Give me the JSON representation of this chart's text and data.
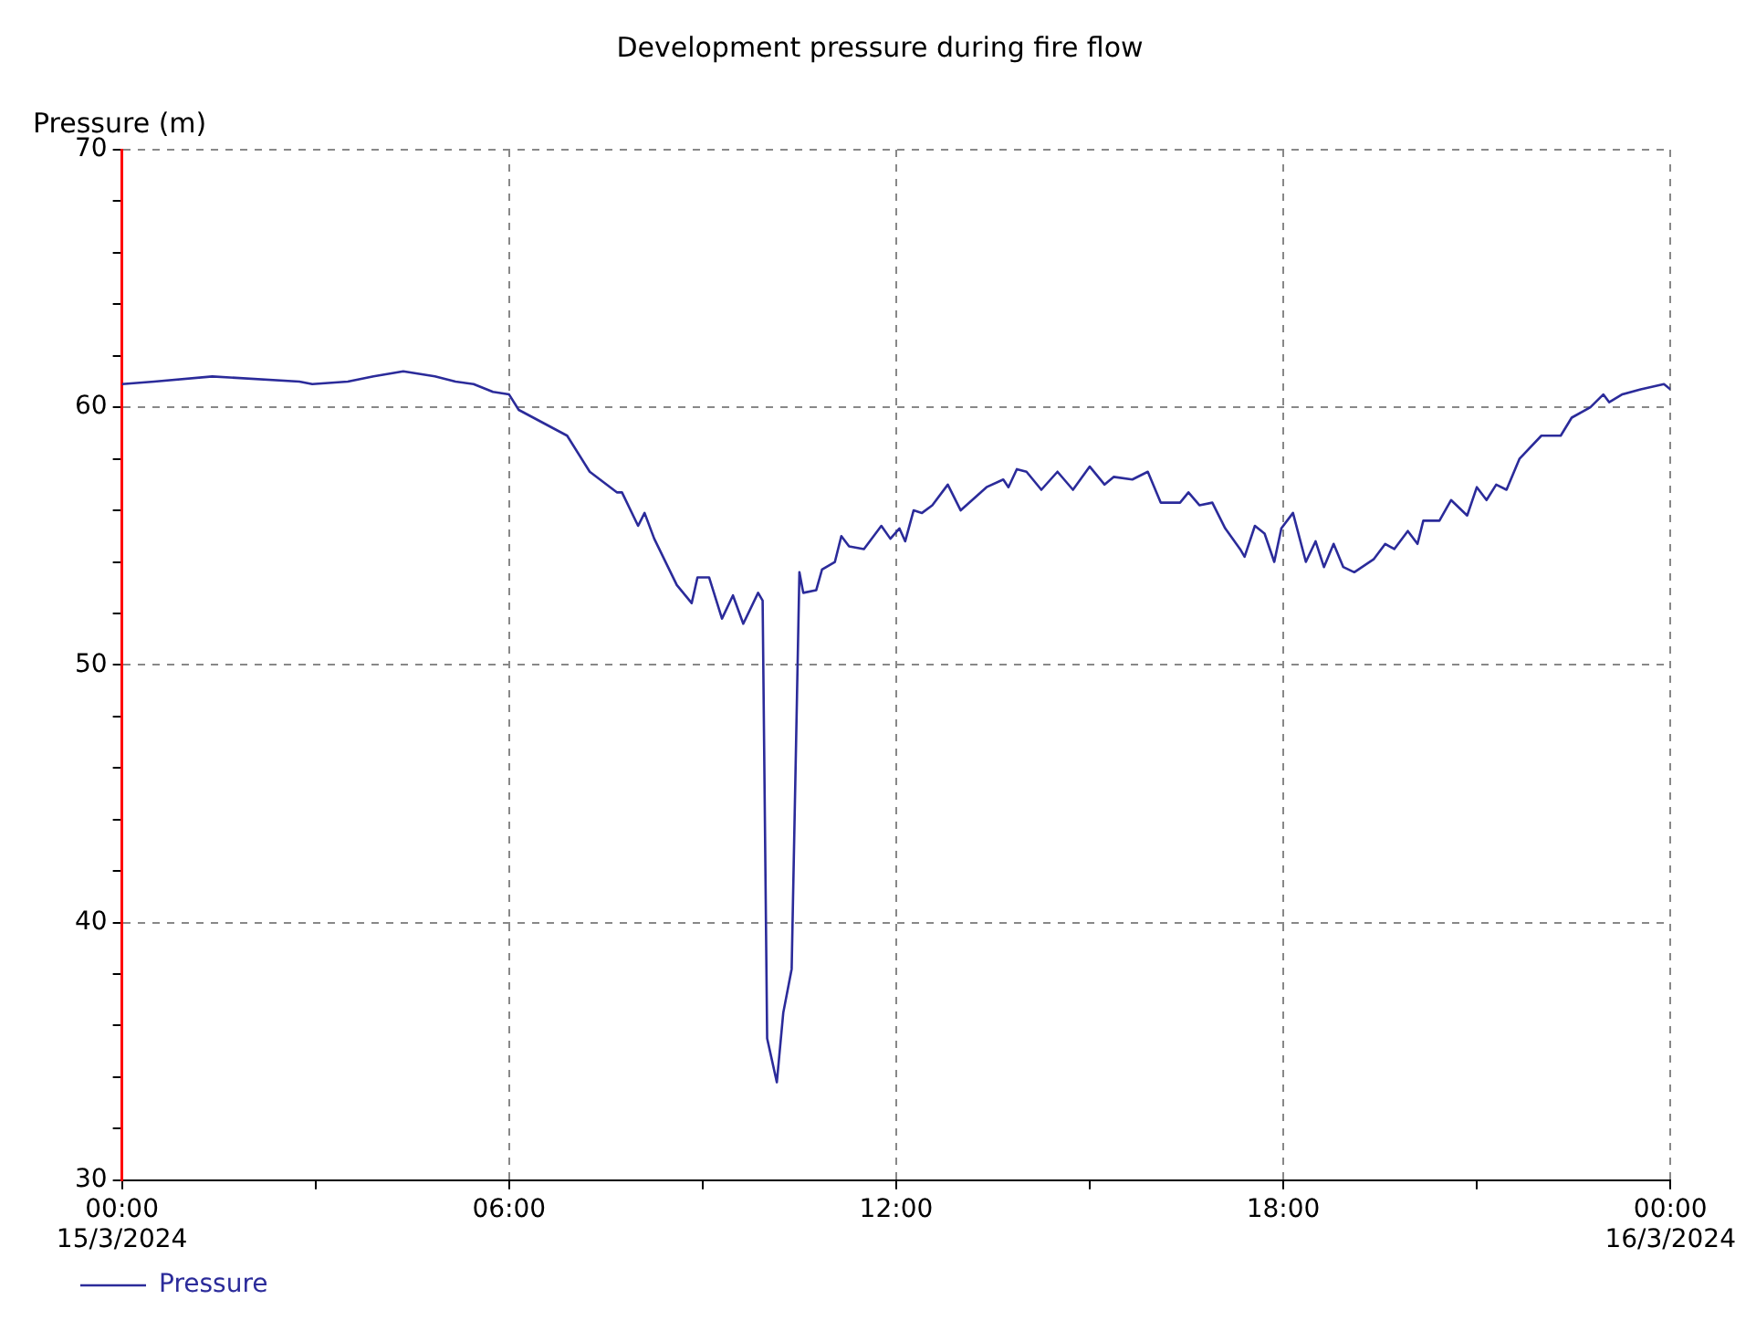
{
  "chart_data": {
    "type": "line",
    "title": "Development pressure during fire flow",
    "ylabel": "Pressure (m)",
    "xlim": [
      0,
      24
    ],
    "xticks": [
      {
        "value": 0,
        "label": "00:00\n15/3/2024"
      },
      {
        "value": 3,
        "label": null
      },
      {
        "value": 6,
        "label": "06:00"
      },
      {
        "value": 9,
        "label": null
      },
      {
        "value": 12,
        "label": "12:00"
      },
      {
        "value": 15,
        "label": null
      },
      {
        "value": 18,
        "label": "18:00"
      },
      {
        "value": 21,
        "label": null
      },
      {
        "value": 24,
        "label": "00:00\n16/3/2024"
      }
    ],
    "ylim": [
      30,
      70
    ],
    "yticks": [
      30,
      {
        "value": 32,
        "label": null
      },
      {
        "value": 34,
        "label": null
      },
      {
        "value": 36,
        "label": null
      },
      {
        "value": 38,
        "label": null
      },
      40,
      {
        "value": 42,
        "label": null
      },
      {
        "value": 44,
        "label": null
      },
      {
        "value": 46,
        "label": null
      },
      {
        "value": 48,
        "label": null
      },
      50,
      {
        "value": 52,
        "label": null
      },
      {
        "value": 54,
        "label": null
      },
      {
        "value": 56,
        "label": null
      },
      {
        "value": 58,
        "label": null
      },
      60,
      {
        "value": 62,
        "label": null
      },
      {
        "value": 64,
        "label": null
      },
      {
        "value": 66,
        "label": null
      },
      {
        "value": 68,
        "label": null
      },
      70
    ],
    "grid": true,
    "legend": "bottom left",
    "marker": "none",
    "line_style": "solid",
    "series": [
      {
        "name": "Pressure",
        "color": "#2b2b9a",
        "x": [
          0,
          0.5,
          1.4,
          2.75,
          2.95,
          3.5,
          3.9,
          4.36,
          4.85,
          5.17,
          5.45,
          5.75,
          6.0,
          6.15,
          6.9,
          7.25,
          7.67,
          7.75,
          8.0,
          8.1,
          8.25,
          8.6,
          8.83,
          8.92,
          9.1,
          9.3,
          9.47,
          9.63,
          9.86,
          9.93,
          10.0,
          10.15,
          10.25,
          10.38,
          10.5,
          10.56,
          10.76,
          10.85,
          11.05,
          11.15,
          11.27,
          11.5,
          11.77,
          11.91,
          12.05,
          12.14,
          12.27,
          12.4,
          12.56,
          12.8,
          13.0,
          13.4,
          13.66,
          13.74,
          13.87,
          14.02,
          14.25,
          14.5,
          14.74,
          15.0,
          15.23,
          15.37,
          15.66,
          15.9,
          16.1,
          16.4,
          16.53,
          16.7,
          16.9,
          17.1,
          17.33,
          17.4,
          17.56,
          17.71,
          17.86,
          17.97,
          18.15,
          18.35,
          18.5,
          18.63,
          18.78,
          18.93,
          19.1,
          19.4,
          19.58,
          19.72,
          19.93,
          20.08,
          20.17,
          20.42,
          20.6,
          20.85,
          21.0,
          21.15,
          21.3,
          21.46,
          21.66,
          22.0,
          22.3,
          22.47,
          22.76,
          22.96,
          23.05,
          23.25,
          23.54,
          23.9,
          24
        ],
        "values": [
          60.9,
          61.0,
          61.2,
          61.0,
          60.9,
          61.0,
          61.2,
          61.4,
          61.2,
          61.0,
          60.9,
          60.6,
          60.5,
          59.9,
          58.9,
          57.5,
          56.7,
          56.7,
          55.4,
          55.9,
          54.9,
          53.1,
          52.4,
          53.4,
          53.4,
          51.8,
          52.7,
          51.6,
          52.8,
          52.5,
          35.5,
          33.8,
          36.5,
          38.2,
          53.6,
          52.8,
          52.9,
          53.7,
          54.0,
          55.0,
          54.6,
          54.5,
          55.4,
          54.9,
          55.3,
          54.8,
          56.0,
          55.9,
          56.2,
          57.0,
          56.0,
          56.9,
          57.2,
          56.9,
          57.6,
          57.5,
          56.8,
          57.5,
          56.8,
          57.7,
          57.0,
          57.3,
          57.2,
          57.5,
          56.3,
          56.3,
          56.7,
          56.2,
          56.3,
          55.3,
          54.5,
          54.2,
          55.4,
          55.1,
          54.0,
          55.3,
          55.9,
          54.0,
          54.8,
          53.8,
          54.7,
          53.8,
          53.6,
          54.1,
          54.7,
          54.5,
          55.2,
          54.7,
          55.6,
          55.6,
          56.4,
          55.8,
          56.9,
          56.4,
          57.0,
          56.8,
          58.0,
          58.9,
          58.9,
          59.6,
          60.0,
          60.5,
          60.2,
          60.5,
          60.7,
          60.9,
          60.7
        ]
      }
    ]
  }
}
